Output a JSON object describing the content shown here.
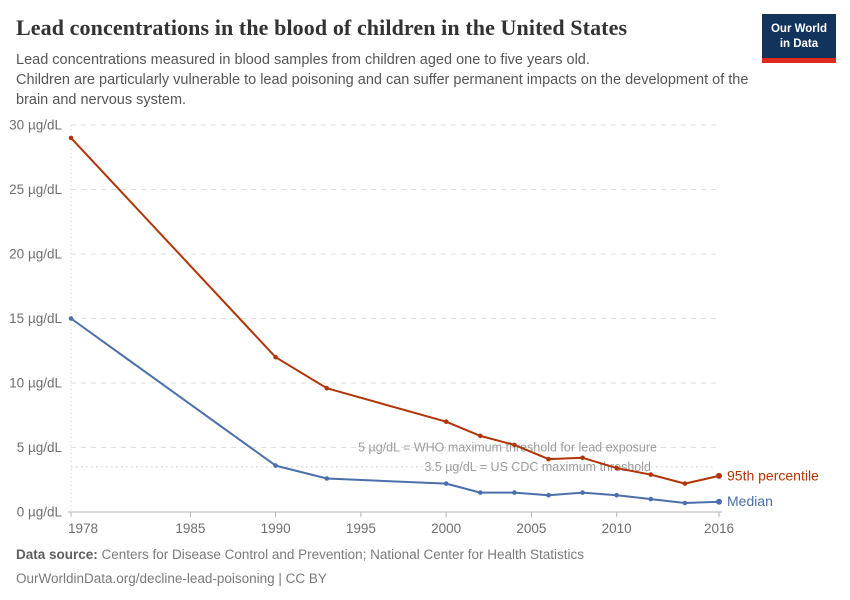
{
  "header": {
    "title": "Lead concentrations in the blood of children in the United States",
    "subtitle_line1": "Lead concentrations measured in blood samples from children aged one to five years old.",
    "subtitle_line2": "Children are particularly vulnerable to lead poisoning and can suffer permanent impacts on the development of the brain and nervous system.",
    "logo": {
      "line1": "Our World",
      "line2": "in Data"
    }
  },
  "chart_data": {
    "type": "line",
    "title": "Lead concentrations in the blood of children in the United States",
    "unit": "µg/dL",
    "x": [
      1978,
      1990,
      1993,
      2000,
      2002,
      2004,
      2006,
      2008,
      2010,
      2012,
      2014,
      2016
    ],
    "series": [
      {
        "name": "95th percentile",
        "color": "#b13507",
        "values": [
          29,
          12,
          9.6,
          7,
          5.9,
          5.2,
          4.1,
          4.2,
          3.4,
          2.9,
          2.2,
          2.8
        ]
      },
      {
        "name": "Median",
        "color": "#4a6fab",
        "values": [
          15,
          3.6,
          2.6,
          2.2,
          1.5,
          1.5,
          1.3,
          1.5,
          1.3,
          1.0,
          0.7,
          0.8
        ]
      }
    ],
    "xlim": [
      1978,
      2016
    ],
    "ylim": [
      0,
      30
    ],
    "x_ticks": [
      1978,
      1985,
      1990,
      1995,
      2000,
      2005,
      2010,
      2016
    ],
    "y_ticks": [
      0,
      5,
      10,
      15,
      20,
      25,
      30
    ],
    "y_tick_format": "{v} µg/dL",
    "grid": "dashed-horizontal",
    "legend_position": "line-end",
    "annotations": [
      {
        "value": 5,
        "style": "dashed",
        "text": "5 µg/dL = WHO maximum threshold for lead exposure"
      },
      {
        "value": 3.5,
        "style": "dotted",
        "text": "3.5 µg/dL = US CDC maximum threshold"
      }
    ]
  },
  "footer": {
    "source_label": "Data source:",
    "source_text": " Centers for Disease Control and Prevention; National Center for Health Statistics",
    "link_line": "OurWorldinData.org/decline-lead-poisoning | CC BY"
  }
}
